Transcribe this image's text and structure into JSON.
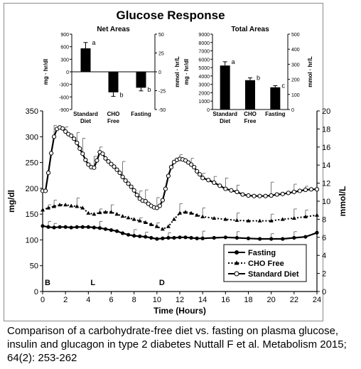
{
  "figure": {
    "caption": "Comparison of a carbohydrate-free diet vs. fasting on plasma glucose, insulin and glucagon in type 2 diabetes Nuttall F et al. Metabolism 2015; 64(2): 253-262"
  },
  "chart_data": [
    {
      "type": "line",
      "title": "Glucose Response",
      "xlabel": "Time (Hours)",
      "ylabel": "mg/dl",
      "y2label": "mmol/L",
      "xlim": [
        0,
        24
      ],
      "ylim": [
        0,
        350
      ],
      "y2lim": [
        0,
        20
      ],
      "xticks": [
        0,
        2,
        4,
        6,
        8,
        10,
        12,
        14,
        16,
        18,
        20,
        22,
        24
      ],
      "yticks": [
        0,
        50,
        100,
        150,
        200,
        250,
        300,
        350
      ],
      "y2ticks": [
        0,
        2,
        4,
        6,
        8,
        10,
        12,
        14,
        16,
        18,
        20
      ],
      "meal_markers": [
        {
          "label": "B",
          "x": 0
        },
        {
          "label": "L",
          "x": 4
        },
        {
          "label": "D",
          "x": 10
        }
      ],
      "legend_position": "bottom-right",
      "series": [
        {
          "name": "Fasting",
          "marker": "filled-circle",
          "line": "solid",
          "x": [
            0,
            0.5,
            1,
            1.5,
            2,
            2.5,
            3,
            3.5,
            4,
            4.5,
            5,
            5.5,
            6,
            6.5,
            7,
            7.5,
            8,
            8.5,
            9,
            9.5,
            10,
            10.5,
            11,
            11.5,
            12,
            12.5,
            13,
            13.5,
            14,
            15,
            16,
            17,
            18,
            19,
            20,
            21,
            22,
            23,
            24
          ],
          "y": [
            127,
            125,
            124,
            125,
            125,
            124,
            125,
            125,
            125,
            124,
            123,
            121,
            119,
            117,
            113,
            110,
            108,
            107,
            106,
            104,
            102,
            103,
            104,
            104,
            105,
            105,
            104,
            103,
            103,
            104,
            105,
            104,
            103,
            102,
            102,
            102,
            104,
            106,
            114
          ]
        },
        {
          "name": "CHO Free",
          "marker": "filled-triangle",
          "line": "dotted",
          "x": [
            0,
            0.5,
            1,
            1.5,
            2,
            2.5,
            3,
            3.5,
            4,
            4.5,
            5,
            5.5,
            6,
            6.5,
            7,
            7.5,
            8,
            8.5,
            9,
            9.5,
            10,
            10.5,
            11,
            11.5,
            12,
            12.5,
            13,
            13.5,
            14,
            15,
            16,
            17,
            18,
            19,
            20,
            21,
            22,
            23,
            24
          ],
          "y": [
            158,
            162,
            165,
            168,
            168,
            166,
            165,
            162,
            152,
            150,
            153,
            154,
            154,
            150,
            146,
            143,
            140,
            137,
            134,
            130,
            126,
            121,
            126,
            140,
            152,
            154,
            152,
            148,
            145,
            142,
            140,
            138,
            137,
            137,
            137,
            140,
            142,
            145,
            148
          ]
        },
        {
          "name": "Standard Diet",
          "marker": "open-circle",
          "line": "solid",
          "x": [
            0,
            0.25,
            0.5,
            0.75,
            1,
            1.25,
            1.5,
            1.75,
            2,
            2.25,
            2.5,
            2.75,
            3,
            3.25,
            3.5,
            3.75,
            4,
            4.25,
            4.5,
            4.75,
            5,
            5.25,
            5.5,
            5.75,
            6,
            6.25,
            6.5,
            6.75,
            7,
            7.25,
            7.5,
            7.75,
            8,
            8.25,
            8.5,
            8.75,
            9,
            9.25,
            9.5,
            9.75,
            10,
            10.25,
            10.5,
            10.75,
            11,
            11.25,
            11.5,
            11.75,
            12,
            12.25,
            12.5,
            12.75,
            13,
            13.25,
            13.5,
            13.75,
            14,
            14.5,
            15,
            15.5,
            16,
            16.5,
            17,
            17.5,
            18,
            18.5,
            19,
            19.5,
            20,
            20.5,
            21,
            21.5,
            22,
            22.5,
            23,
            23.5,
            24
          ],
          "y": [
            195,
            195,
            230,
            268,
            300,
            315,
            318,
            316,
            310,
            305,
            302,
            296,
            288,
            277,
            267,
            255,
            246,
            241,
            240,
            254,
            270,
            267,
            258,
            252,
            247,
            242,
            236,
            230,
            222,
            215,
            209,
            203,
            196,
            187,
            180,
            176,
            175,
            170,
            166,
            163,
            162,
            166,
            177,
            199,
            224,
            241,
            251,
            255,
            257,
            256,
            254,
            250,
            246,
            241,
            233,
            227,
            220,
            216,
            211,
            205,
            199,
            196,
            193,
            188,
            186,
            185,
            185,
            185,
            186,
            188,
            189,
            191,
            193,
            195,
            197,
            198,
            198
          ]
        }
      ],
      "error_bars_up": [
        {
          "series": "Standard Diet",
          "x": [
            1,
            2,
            3,
            3.5,
            4.5,
            5,
            7,
            8.5,
            9,
            10,
            12,
            13,
            14,
            15,
            16,
            17,
            20,
            22,
            23
          ],
          "y": [
            322,
            319,
            308,
            297,
            262,
            280,
            252,
            195,
            197,
            182,
            265,
            258,
            229,
            223,
            220,
            206,
            212,
            208,
            204
          ]
        },
        {
          "series": "CHO Free",
          "x": [
            0.5,
            1,
            3,
            5,
            6,
            8.5,
            10,
            12,
            14,
            17,
            20,
            22,
            23
          ],
          "y": [
            168,
            177,
            181,
            160,
            168,
            143,
            133,
            170,
            162,
            152,
            150,
            160,
            158
          ]
        },
        {
          "series": "Fasting",
          "x": [
            0.5,
            1,
            5,
            8,
            9,
            11,
            14,
            17,
            20,
            22
          ],
          "y": [
            136,
            132,
            136,
            120,
            115,
            114,
            117,
            116,
            112,
            116
          ]
        }
      ]
    },
    {
      "type": "bar",
      "title": "Net Areas",
      "categories": [
        "Standard\nDiet",
        "CHO\nFree",
        "Fasting"
      ],
      "values": [
        560,
        -490,
        -380
      ],
      "errors": [
        140,
        95,
        75
      ],
      "sig_labels": [
        "a",
        "b",
        "b"
      ],
      "ylabel": "mg · hr/dl",
      "y2label": "mmol · hr/L",
      "ylim": [
        -900,
        900
      ],
      "yticks": [
        -900,
        -600,
        -300,
        0,
        300,
        600,
        900
      ],
      "y2lim": [
        -50,
        50
      ],
      "y2ticks": [
        -50,
        -25,
        0,
        25,
        50
      ]
    },
    {
      "type": "bar",
      "title": "Total Areas",
      "categories": [
        "Standard\nDiet",
        "CHO\nFree",
        "Fasting"
      ],
      "values": [
        5250,
        3500,
        2650
      ],
      "errors": [
        450,
        280,
        200
      ],
      "sig_labels": [
        "a",
        "b",
        "c"
      ],
      "ylabel": "mg · hr/dl",
      "y2label": "mmol · hr/L",
      "ylim": [
        0,
        9000
      ],
      "yticks": [
        0,
        1000,
        2000,
        3000,
        4000,
        5000,
        6000,
        7000,
        8000,
        9000
      ],
      "y2lim": [
        0,
        500
      ],
      "y2ticks": [
        0,
        100,
        200,
        300,
        400,
        500
      ]
    }
  ]
}
